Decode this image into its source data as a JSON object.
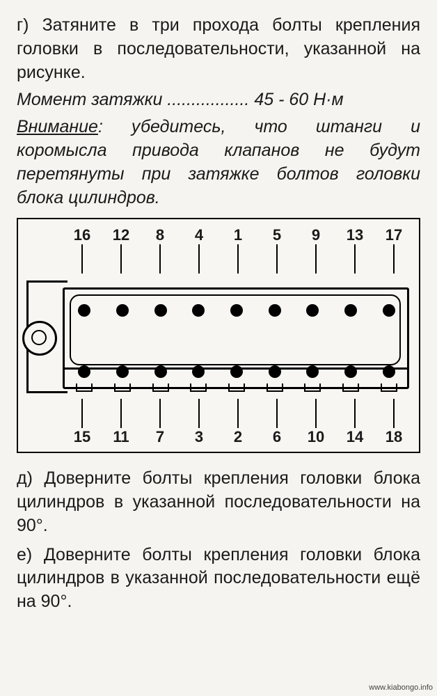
{
  "paragraphs": {
    "p_g": "г) Затяните в три прохода болты крепления головки в последова­тельности, указанной на рисунке.",
    "torque_label": "Момент затяжки ................. ",
    "torque_value": "45 - 60 Н·м",
    "warning_label": "Внимание",
    "warning_text": ": убедитесь, что штанги и коромысла привода клапанов не бу­дут перетянуты при затяжке бол­тов головки блока цилиндров.",
    "p_d": "д) Доверните болты крепления го­ловки блока цилиндров в указанной последовательности на 90°.",
    "p_e": "е) Доверните болты крепления го­ловки блока цилиндров в указанной последовательности ещё на 90°."
  },
  "diagram": {
    "top_numbers": [
      "16",
      "12",
      "8",
      "4",
      "1",
      "5",
      "9",
      "13",
      "17"
    ],
    "bottom_numbers": [
      "15",
      "11",
      "7",
      "3",
      "2",
      "6",
      "10",
      "14",
      "18"
    ]
  },
  "watermark": "www.kiabongo.info"
}
